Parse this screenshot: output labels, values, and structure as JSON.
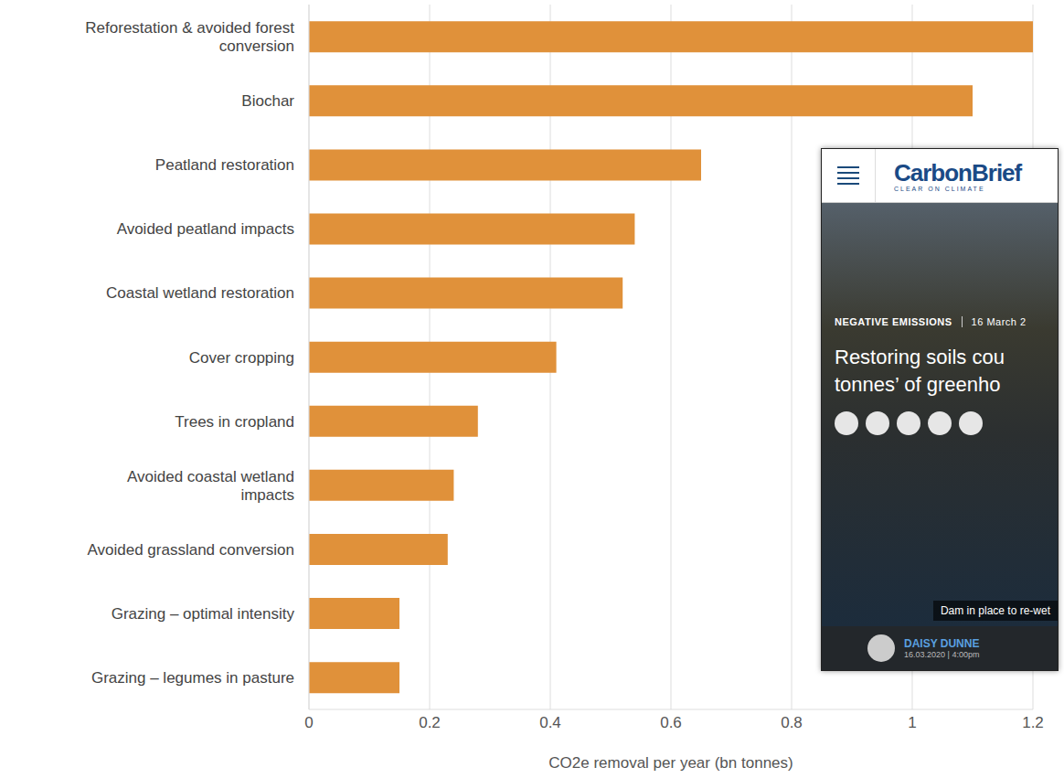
{
  "chart_data": {
    "type": "bar",
    "orientation": "horizontal",
    "categories": [
      "Reforestation & avoided forest conversion",
      "Biochar",
      "Peatland restoration",
      "Avoided peatland impacts",
      "Coastal wetland restoration",
      "Cover cropping",
      "Trees in cropland",
      "Avoided coastal wetland impacts",
      "Avoided grassland conversion",
      "Grazing – optimal intensity",
      "Grazing – legumes in pasture"
    ],
    "values": [
      1.2,
      1.1,
      0.65,
      0.54,
      0.52,
      0.41,
      0.28,
      0.24,
      0.23,
      0.15,
      0.15
    ],
    "color": "#e0913a",
    "xlabel": "CO2e removal per year (bn tonnes)",
    "xlim": [
      0,
      1.2
    ],
    "xticks": [
      0,
      0.2,
      0.4,
      0.6,
      0.8,
      1,
      1.2
    ],
    "grid": true
  },
  "inset": {
    "header": {
      "title": "CarbonBrief",
      "tagline": "CLEAR ON CLIMATE"
    },
    "article": {
      "category": "NEGATIVE EMISSIONS",
      "date": "16 March 2",
      "title": [
        "Restoring soils cou",
        "tonnes’ of greenho"
      ],
      "caption": "Dam in place to re-wet",
      "author": "DAISY DUNNE",
      "timestamp": "16.03.2020 | 4:00pm"
    }
  }
}
